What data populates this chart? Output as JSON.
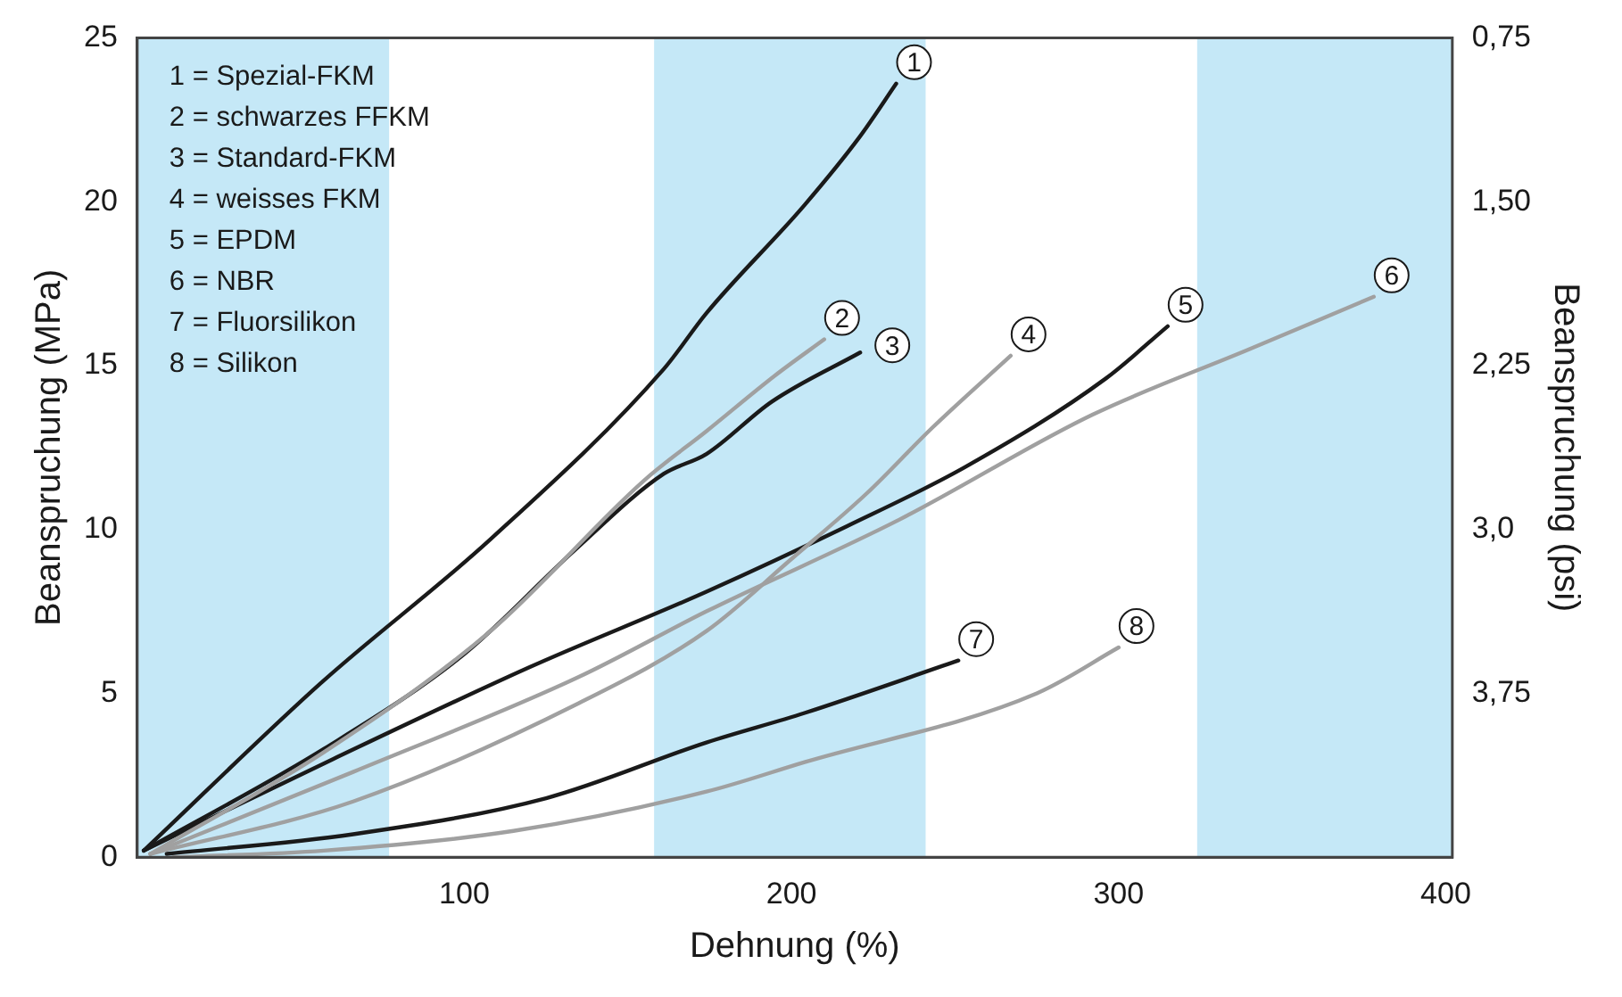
{
  "chart_data": {
    "type": "line",
    "xlabel": "Dehnung (%)",
    "ylabel": "Beanspruchung (MPa)",
    "y2label": "Beanspruchung (psi)",
    "xlim": [
      0,
      402
    ],
    "xticks": [
      100,
      200,
      300,
      400
    ],
    "ylim": [
      0,
      25
    ],
    "yticks": [
      0,
      5,
      10,
      15,
      20,
      25
    ],
    "y2lim": [
      4.5,
      0.75
    ],
    "y2ticks": [
      {
        "value": 0.75,
        "label": "0,75"
      },
      {
        "value": 1.5,
        "label": "1,50"
      },
      {
        "value": 2.25,
        "label": "2,25"
      },
      {
        "value": 3.0,
        "label": "3,0"
      },
      {
        "value": 3.75,
        "label": "3,75"
      }
    ],
    "grid": false,
    "legend": false,
    "marker": "none",
    "line_style": "solid",
    "bands": [
      {
        "axis": "x",
        "from": 0,
        "to": 77,
        "color": "#c5e8f7"
      },
      {
        "axis": "x",
        "from": 158,
        "to": 241,
        "color": "#c5e8f7"
      },
      {
        "axis": "x",
        "from": 324,
        "to": 402,
        "color": "#c5e8f7"
      }
    ],
    "annotations": [
      "1 = Spezial-FKM",
      "2 = schwarzes FFKM",
      "3 = Standard-FKM",
      "4 = weisses FKM",
      "5 = EPDM",
      "6 = NBR",
      "7 = Fluorsilikon",
      "8 = Silikon"
    ],
    "series": [
      {
        "name": "1",
        "color": "#1a1a1a",
        "x": [
          2,
          56,
          108,
          161,
          174,
          204,
          221,
          232
        ],
        "values": [
          0.2,
          5.3,
          9.7,
          14.9,
          16.6,
          19.9,
          22,
          23.6
        ]
      },
      {
        "name": "2",
        "color": "#a0a0a0",
        "x": [
          4,
          57,
          108,
          155,
          174,
          195,
          210
        ],
        "values": [
          0.1,
          3.2,
          6.9,
          11.5,
          13,
          14.7,
          15.8
        ]
      },
      {
        "name": "3",
        "color": "#1a1a1a",
        "x": [
          2,
          57,
          100,
          133,
          161,
          174,
          194,
          221
        ],
        "values": [
          0.2,
          3.3,
          6.2,
          9.3,
          11.7,
          12.3,
          13.9,
          15.4
        ]
      },
      {
        "name": "4",
        "color": "#a0a0a0",
        "x": [
          4,
          66,
          135,
          174,
          200,
          223,
          243,
          267
        ],
        "values": [
          0.1,
          1.7,
          4.7,
          6.9,
          9.1,
          11.1,
          13.1,
          15.3
        ]
      },
      {
        "name": "5",
        "color": "#1a1a1a",
        "x": [
          2,
          60,
          120,
          174,
          217,
          253,
          296,
          315
        ],
        "values": [
          0.2,
          3.0,
          5.8,
          8.1,
          10.1,
          11.9,
          14.6,
          16.2
        ]
      },
      {
        "name": "6",
        "color": "#a0a0a0",
        "x": [
          4,
          66,
          135,
          174,
          233,
          292,
          340,
          378
        ],
        "values": [
          0.1,
          2.6,
          5.5,
          7.5,
          10.3,
          13.5,
          15.5,
          17.1
        ]
      },
      {
        "name": "7",
        "color": "#1a1a1a",
        "x": [
          9,
          66,
          125,
          174,
          204,
          251
        ],
        "values": [
          0.1,
          0.7,
          1.8,
          3.5,
          4.4,
          6.0
        ]
      },
      {
        "name": "8",
        "color": "#a0a0a0",
        "x": [
          11,
          57,
          115,
          174,
          204,
          275,
          300
        ],
        "values": [
          0,
          0.2,
          0.8,
          2.0,
          2.9,
          5.0,
          6.4
        ]
      }
    ]
  }
}
